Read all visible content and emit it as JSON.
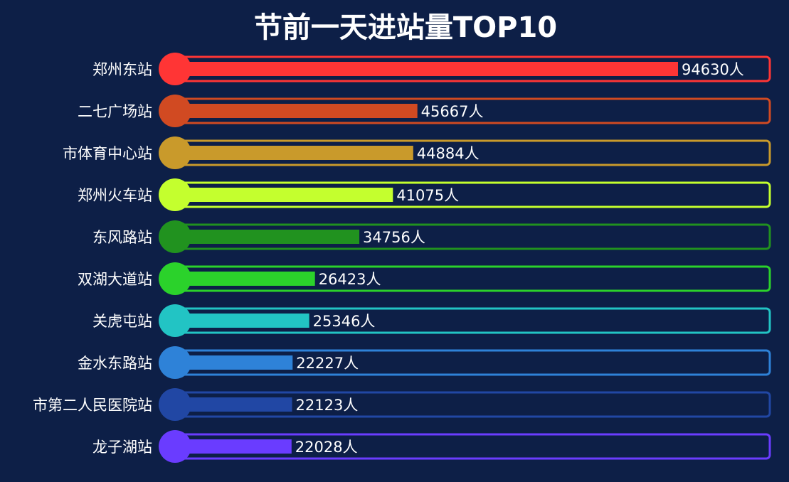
{
  "chart_data": {
    "type": "bar",
    "orientation": "horizontal",
    "title": "节前一天进站量TOP10",
    "categories": [
      "郑州东站",
      "二七广场站",
      "市体育中心站",
      "郑州火车站",
      "东风路站",
      "双湖大道站",
      "关虎屯站",
      "金水东路站",
      "市第二人民医院站",
      "龙子湖站"
    ],
    "values": [
      94630,
      45667,
      44884,
      41075,
      34756,
      26423,
      25346,
      22227,
      22123,
      22028
    ],
    "unit": "人",
    "colors": [
      "#ff3535",
      "#d14a22",
      "#c99a2b",
      "#c4ff2e",
      "#21921f",
      "#2bd22b",
      "#22c4c4",
      "#2e82d8",
      "#2147a4",
      "#6a3cff"
    ],
    "xlim": [
      0,
      100000
    ],
    "grid": false,
    "legend": "none"
  }
}
